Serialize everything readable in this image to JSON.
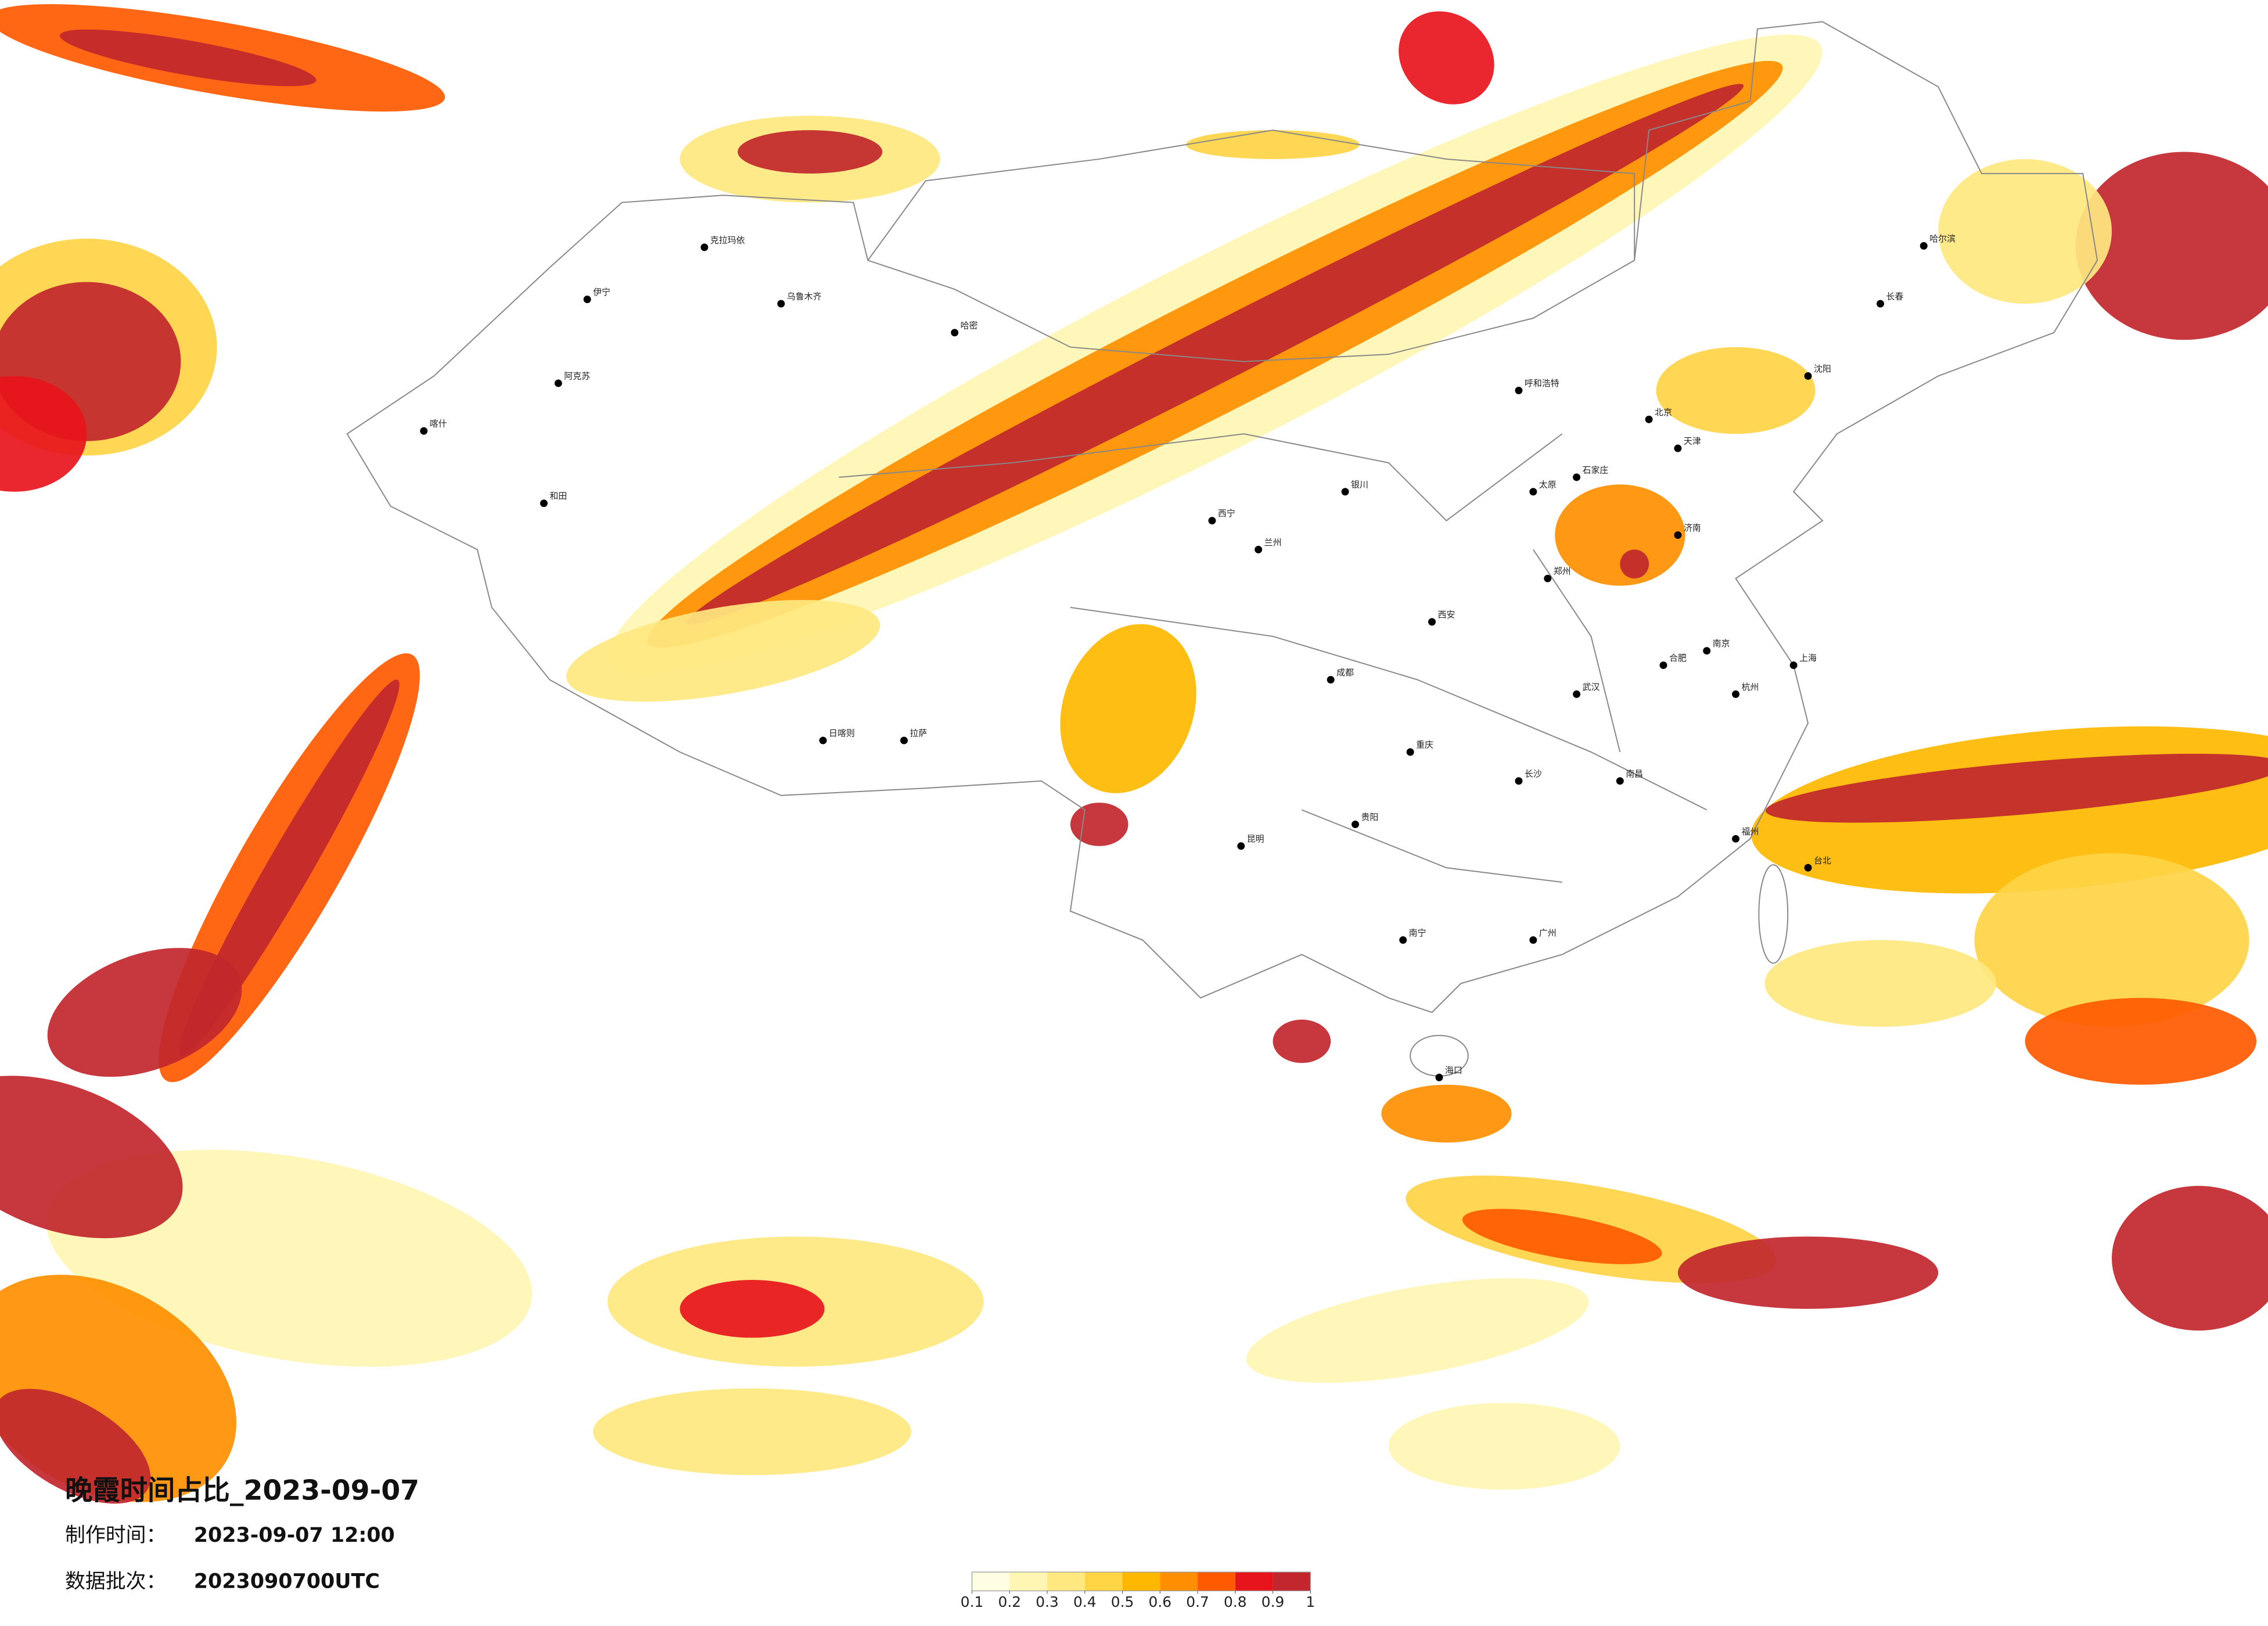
{
  "title": "晚霞时间占比_2023-09-07",
  "meta": [
    {
      "label": "制作时间：",
      "value": "2023-09-07 12:00"
    },
    {
      "label": "数据批次：",
      "value": "2023090700UTC"
    }
  ],
  "legend": {
    "ticks": [
      0.1,
      0.2,
      0.3,
      0.4,
      0.5,
      0.6,
      0.7,
      0.8,
      0.9,
      1
    ],
    "colors": [
      "#fffde2",
      "#fff6b3",
      "#ffe880",
      "#ffd445",
      "#ffb800",
      "#ff8f00",
      "#ff5a00",
      "#e8141c",
      "#c1272d"
    ]
  },
  "cities": [
    "乌鲁木齐",
    "克拉玛依",
    "伊宁",
    "阿克苏",
    "喀什",
    "和田",
    "哈密",
    "拉萨",
    "日喀则",
    "西宁",
    "兰州",
    "成都",
    "重庆",
    "昆明",
    "贵阳",
    "南宁",
    "广州",
    "海口",
    "长沙",
    "武汉",
    "南昌",
    "福州",
    "杭州",
    "上海",
    "南京",
    "合肥",
    "郑州",
    "西安",
    "太原",
    "石家庄",
    "北京",
    "天津",
    "济南",
    "沈阳",
    "长春",
    "哈尔滨",
    "呼和浩特",
    "银川",
    "台北"
  ]
}
